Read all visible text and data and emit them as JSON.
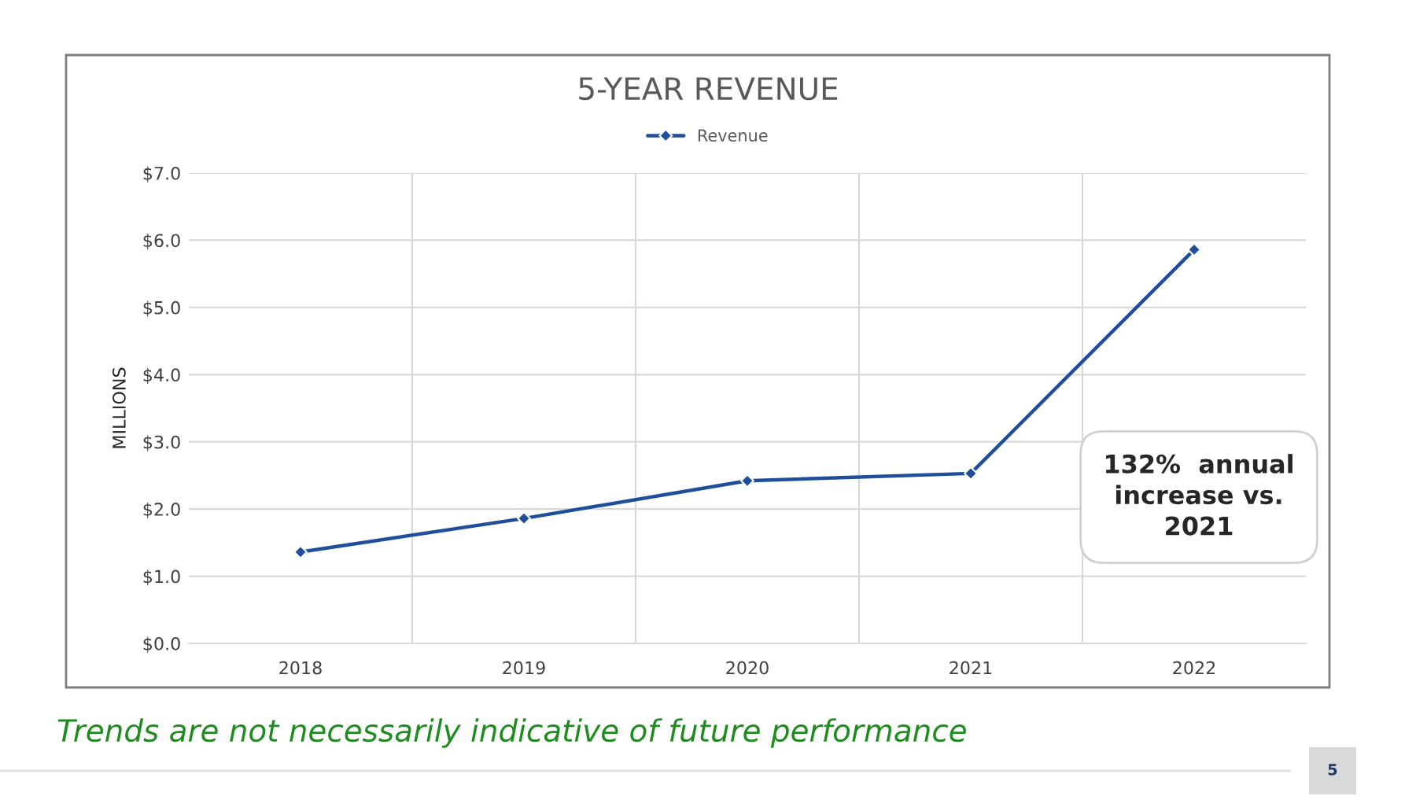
{
  "chart_data": {
    "type": "line",
    "title": "5-YEAR REVENUE",
    "ylabel": "MILLIONS",
    "categories": [
      "2018",
      "2019",
      "2020",
      "2021",
      "2022"
    ],
    "series": [
      {
        "name": "Revenue",
        "color": "#1f4e9c",
        "values": [
          1.36,
          1.86,
          2.42,
          2.53,
          5.86
        ]
      }
    ],
    "ylim": [
      0,
      7
    ],
    "yticks": [
      {
        "value": 0,
        "label": "$0.0"
      },
      {
        "value": 1,
        "label": "$1.0"
      },
      {
        "value": 2,
        "label": "$2.0"
      },
      {
        "value": 3,
        "label": "$3.0"
      },
      {
        "value": 4,
        "label": "$4.0"
      },
      {
        "value": 5,
        "label": "$5.0"
      },
      {
        "value": 6,
        "label": "$6.0"
      },
      {
        "value": 7,
        "label": "$7.0"
      }
    ],
    "grid": true,
    "legend": "top",
    "marker": "diamond",
    "line_style": "solid",
    "annotations": [
      "132%  annual\nincrease vs.\n2021",
      "Trends are not necessarily indicative of future performance",
      "5"
    ]
  }
}
